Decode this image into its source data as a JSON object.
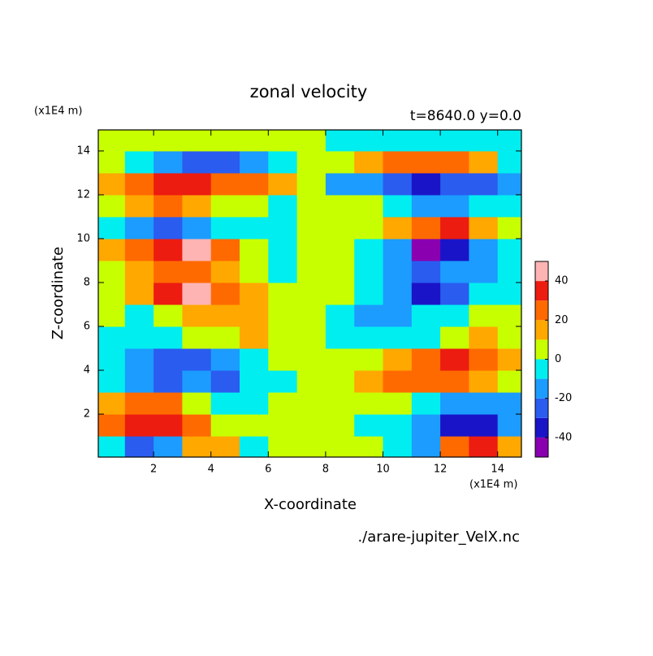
{
  "chart_data": {
    "type": "contour",
    "title": "zonal velocity",
    "subtitle": "t=8640.0 y=0.0",
    "x_unit": "(x1E4 m)",
    "y_unit": "(x1E4 m)",
    "x_label": "X-coordinate",
    "y_label": "Z-coordinate",
    "source": "./arare-jupiter_VelX.nc",
    "x": [
      0.5,
      1.5,
      2.5,
      3.5,
      4.5,
      5.5,
      6.5,
      7.5,
      8.5,
      9.5,
      10.5,
      11.5,
      12.5,
      13.5,
      14.5
    ],
    "y": [
      0.5,
      1.5,
      2.5,
      3.5,
      4.5,
      5.5,
      6.5,
      7.5,
      8.5,
      9.5,
      10.5,
      11.5,
      12.5,
      13.5,
      14.5
    ],
    "z": [
      [
        -10,
        -30,
        -20,
        15,
        10,
        -5,
        0,
        0,
        0,
        5,
        -10,
        -15,
        20,
        30,
        10
      ],
      [
        20,
        35,
        35,
        20,
        5,
        5,
        0,
        0,
        0,
        -5,
        -5,
        -20,
        -35,
        -35,
        -20
      ],
      [
        15,
        20,
        20,
        5,
        -5,
        -5,
        0,
        0,
        0,
        5,
        5,
        -5,
        -20,
        -20,
        -15
      ],
      [
        -5,
        -15,
        -25,
        -20,
        -25,
        -10,
        -5,
        0,
        5,
        10,
        25,
        20,
        25,
        15,
        5
      ],
      [
        -10,
        -20,
        -30,
        -25,
        -15,
        -5,
        0,
        0,
        0,
        5,
        15,
        25,
        30,
        20,
        10
      ],
      [
        -5,
        -10,
        -5,
        5,
        5,
        10,
        5,
        0,
        -5,
        -10,
        -5,
        -5,
        5,
        10,
        5
      ],
      [
        0,
        -5,
        5,
        10,
        15,
        15,
        5,
        0,
        -5,
        -15,
        -15,
        -10,
        -5,
        5,
        0
      ],
      [
        5,
        10,
        30,
        40,
        20,
        10,
        0,
        0,
        0,
        -10,
        -20,
        -40,
        -30,
        -10,
        -5
      ],
      [
        5,
        15,
        20,
        25,
        15,
        5,
        -5,
        0,
        5,
        -5,
        -15,
        -25,
        -20,
        -15,
        -5
      ],
      [
        10,
        20,
        35,
        45,
        20,
        5,
        -5,
        0,
        5,
        -5,
        -20,
        -45,
        -35,
        -20,
        -10
      ],
      [
        -5,
        -15,
        -30,
        -20,
        -10,
        -5,
        -5,
        0,
        5,
        5,
        10,
        20,
        30,
        15,
        5
      ],
      [
        5,
        10,
        20,
        15,
        5,
        0,
        -5,
        0,
        5,
        0,
        -5,
        -15,
        -20,
        -10,
        -5
      ],
      [
        15,
        25,
        30,
        35,
        25,
        20,
        15,
        0,
        -15,
        -20,
        -25,
        -35,
        -30,
        -25,
        -15
      ],
      [
        5,
        -10,
        -20,
        -25,
        -25,
        -15,
        -5,
        0,
        5,
        15,
        25,
        25,
        20,
        10,
        -5
      ],
      [
        5,
        5,
        5,
        5,
        5,
        5,
        5,
        0,
        -5,
        -5,
        -5,
        -5,
        -5,
        -5,
        -5
      ]
    ],
    "xlim": [
      0.07,
      14.83
    ],
    "ylim": [
      0.04,
      14.96
    ],
    "xticks": [
      2,
      4,
      6,
      8,
      10,
      12,
      14
    ],
    "yticks": [
      2,
      4,
      6,
      8,
      10,
      12,
      14
    ],
    "levels": [
      -50,
      -40,
      -30,
      -20,
      -10,
      0,
      10,
      20,
      30,
      40,
      50
    ],
    "colors": [
      "#8a00b0",
      "#1a14c8",
      "#2a5cf0",
      "#1c9cff",
      "#00eef0",
      "#c8ff00",
      "#ffa800",
      "#ff6a00",
      "#ec1c10",
      "#ffb4b4"
    ],
    "colorbar_ticks": [
      -40,
      -20,
      0,
      20,
      40
    ]
  }
}
